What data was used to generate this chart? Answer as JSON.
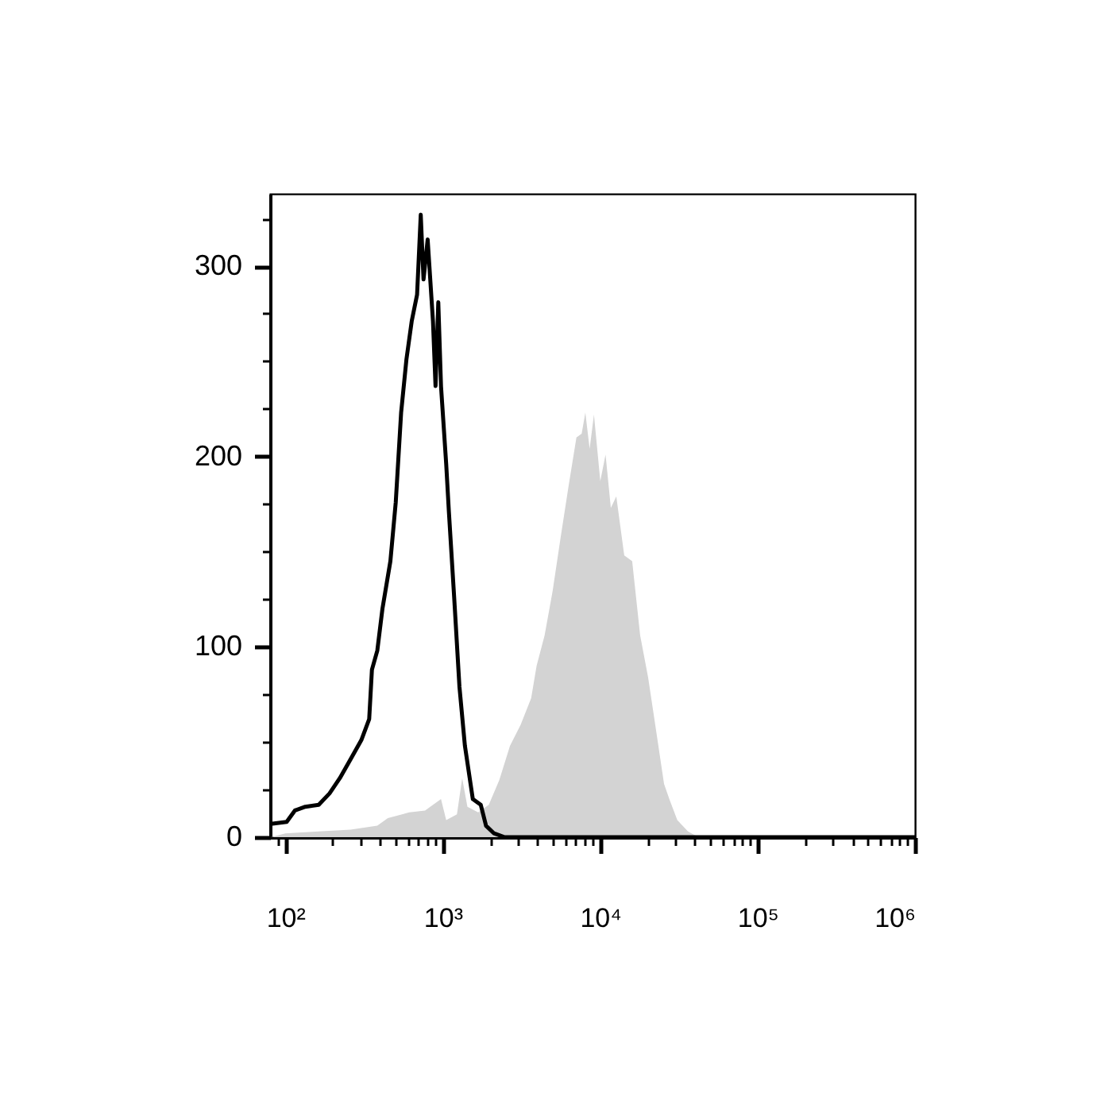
{
  "chart_data": {
    "type": "line",
    "log": "x",
    "xlim": [
      80,
      1000000
    ],
    "xticks": [
      {
        "value": 90,
        "label": null
      },
      {
        "value": 100,
        "label": "10²"
      },
      {
        "value": 200,
        "label": null
      },
      {
        "value": 300,
        "label": null
      },
      {
        "value": 400,
        "label": null
      },
      {
        "value": 500,
        "label": null
      },
      {
        "value": 600,
        "label": null
      },
      {
        "value": 700,
        "label": null
      },
      {
        "value": 800,
        "label": null
      },
      {
        "value": 900,
        "label": null
      },
      {
        "value": 1000,
        "label": "10³"
      },
      {
        "value": 2000,
        "label": null
      },
      {
        "value": 3000,
        "label": null
      },
      {
        "value": 4000,
        "label": null
      },
      {
        "value": 5000,
        "label": null
      },
      {
        "value": 6000,
        "label": null
      },
      {
        "value": 7000,
        "label": null
      },
      {
        "value": 8000,
        "label": null
      },
      {
        "value": 9000,
        "label": null
      },
      {
        "value": 10000,
        "label": "10⁴"
      },
      {
        "value": 20000,
        "label": null
      },
      {
        "value": 30000,
        "label": null
      },
      {
        "value": 40000,
        "label": null
      },
      {
        "value": 50000,
        "label": null
      },
      {
        "value": 60000,
        "label": null
      },
      {
        "value": 70000,
        "label": null
      },
      {
        "value": 80000,
        "label": null
      },
      {
        "value": 90000,
        "label": null
      },
      {
        "value": 100000,
        "label": "10⁵"
      },
      {
        "value": 200000,
        "label": null
      },
      {
        "value": 300000,
        "label": null
      },
      {
        "value": 400000,
        "label": null
      },
      {
        "value": 500000,
        "label": null
      },
      {
        "value": 600000,
        "label": null
      },
      {
        "value": 700000,
        "label": null
      },
      {
        "value": 800000,
        "label": null
      },
      {
        "value": 900000,
        "label": null
      },
      {
        "value": 1000000,
        "label": "10⁶"
      }
    ],
    "ylim": [
      0,
      338
    ],
    "yticks": [
      0,
      {
        "value": 25,
        "label": null
      },
      {
        "value": 50,
        "label": null
      },
      {
        "value": 75,
        "label": null
      },
      100,
      {
        "value": 125,
        "label": null
      },
      {
        "value": 150,
        "label": null
      },
      {
        "value": 175,
        "label": null
      },
      200,
      {
        "value": 225,
        "label": null
      },
      {
        "value": 250,
        "label": null
      },
      {
        "value": 275,
        "label": null
      },
      300,
      {
        "value": 325,
        "label": null
      }
    ],
    "series": [
      {
        "type": "area",
        "color": "#d3d3d3",
        "x": [
          81,
          100,
          163,
          260,
          384,
          448,
          612,
          772,
          975,
          1052,
          1231,
          1329,
          1435,
          1678,
          1961,
          2288,
          2674,
          3125,
          3645,
          3947,
          4436,
          4983,
          5598,
          6288,
          7067,
          7630,
          8051,
          8574,
          9131,
          10020,
          10820,
          11690,
          12660,
          14220,
          15970,
          17950,
          20160,
          22660,
          25460,
          27500,
          30900,
          36130,
          42120
        ],
        "values": [
          0,
          2,
          3,
          4,
          6,
          10,
          13,
          14,
          20,
          9,
          12,
          31,
          16,
          13,
          17,
          30,
          48,
          59,
          73,
          90,
          106,
          129,
          157,
          184,
          210,
          212,
          223,
          204,
          222,
          187,
          201,
          173,
          179,
          148,
          145,
          106,
          84,
          56,
          28,
          20,
          9,
          3,
          0
        ]
      },
      {
        "color": "#000000",
        "x": [
          81,
          102,
          115,
          134,
          163,
          191,
          222,
          260,
          304,
          341,
          355,
          384,
          414,
          465,
          503,
          544,
          588,
          635,
          687,
          725,
          755,
          802,
          867,
          900,
          937,
          975,
          1052,
          1094,
          1182,
          1277,
          1383,
          1553,
          1744,
          1884,
          2117,
          2476,
          1000000
        ],
        "values": [
          7,
          8,
          14,
          16,
          17,
          23,
          31,
          41,
          51,
          62,
          88,
          98,
          120,
          145,
          176,
          223,
          251,
          271,
          285,
          327,
          293,
          314,
          271,
          237,
          281,
          237,
          196,
          171,
          126,
          79,
          48,
          20,
          17,
          6,
          2,
          0,
          0
        ]
      }
    ]
  }
}
